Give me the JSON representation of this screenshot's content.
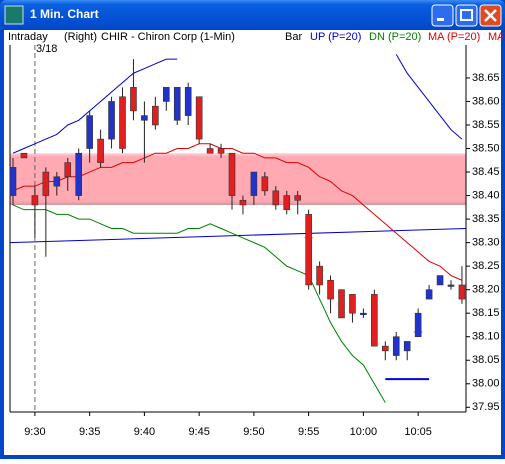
{
  "window": {
    "title": "1 Min. Chart"
  },
  "header": {
    "items": [
      "Intraday",
      "(Right)",
      "CHIR - Chiron Corp (1-Min)"
    ],
    "style": "Bar",
    "truncated": "MA"
  },
  "chart_data": {
    "type": "candlestick",
    "date_label": "3/18",
    "categories": [
      null,
      null,
      "9:30",
      null,
      null,
      null,
      null,
      "9:35",
      null,
      null,
      null,
      null,
      "9:40",
      null,
      null,
      null,
      null,
      "9:45",
      null,
      null,
      null,
      null,
      "9:50",
      null,
      null,
      null,
      null,
      "9:55",
      null,
      null,
      null,
      null,
      "10:00",
      null,
      null,
      null,
      null,
      "10:05",
      null,
      null,
      null,
      null
    ],
    "open": [
      38.4,
      38.49,
      38.4,
      38.45,
      38.42,
      38.47,
      38.4,
      38.5,
      38.52,
      38.52,
      38.61,
      38.63,
      38.56,
      38.59,
      38.6,
      38.56,
      38.57,
      38.61,
      38.5,
      38.5,
      38.49,
      38.39,
      38.4,
      38.44,
      38.41,
      38.4,
      38.4,
      38.36,
      38.25,
      38.22,
      38.2,
      38.19,
      38.15,
      38.19,
      38.08,
      38.06,
      38.07,
      38.1,
      38.18,
      38.21,
      38.21,
      38.21
    ],
    "high": [
      38.48,
      38.49,
      38.42,
      38.46,
      38.45,
      38.48,
      38.5,
      38.58,
      38.54,
      38.61,
      38.63,
      38.69,
      38.6,
      38.61,
      38.63,
      38.63,
      38.64,
      38.61,
      38.51,
      38.51,
      38.49,
      38.4,
      38.45,
      38.45,
      38.42,
      38.41,
      38.41,
      38.37,
      38.26,
      38.23,
      38.2,
      38.19,
      38.16,
      38.2,
      38.09,
      38.11,
      38.09,
      38.16,
      38.21,
      38.23,
      38.22,
      38.25
    ],
    "low": [
      38.38,
      38.48,
      38.31,
      38.27,
      38.4,
      38.41,
      38.39,
      38.47,
      38.46,
      38.5,
      38.49,
      38.56,
      38.47,
      38.54,
      38.58,
      38.55,
      38.55,
      38.51,
      38.49,
      38.48,
      38.37,
      38.36,
      38.38,
      38.4,
      38.37,
      38.36,
      38.36,
      38.2,
      38.19,
      38.15,
      38.14,
      38.13,
      38.14,
      38.08,
      38.05,
      38.05,
      38.05,
      38.1,
      38.18,
      38.21,
      38.2,
      38.17
    ],
    "close": [
      38.46,
      38.48,
      38.38,
      38.4,
      38.44,
      38.44,
      38.49,
      38.57,
      38.47,
      38.6,
      38.5,
      38.58,
      38.57,
      38.55,
      38.63,
      38.63,
      38.63,
      38.52,
      38.49,
      38.49,
      38.4,
      38.38,
      38.45,
      38.41,
      38.38,
      38.37,
      38.39,
      38.21,
      38.21,
      38.18,
      38.14,
      38.15,
      38.15,
      38.08,
      38.07,
      38.1,
      38.09,
      38.15,
      38.2,
      38.23,
      38.21,
      38.18
    ],
    "up_color": "#2233cc",
    "down_color": "#e02020",
    "series": [
      {
        "name": "UP (P=20)",
        "color": "#0000cc",
        "values": [
          38.49,
          38.5,
          38.51,
          38.52,
          38.53,
          38.55,
          38.56,
          38.58,
          38.6,
          38.62,
          38.64,
          38.66,
          38.67,
          38.68,
          38.69,
          38.69,
          null,
          null,
          null,
          null,
          null,
          null,
          null,
          null,
          null,
          null,
          null,
          null,
          null,
          null,
          null,
          null,
          null,
          null,
          null,
          38.7,
          38.66,
          38.63,
          38.6,
          38.57,
          38.54,
          38.52
        ]
      },
      {
        "name": "DN (P=20)",
        "color": "#008000",
        "values": [
          38.38,
          38.37,
          38.37,
          38.37,
          38.36,
          38.36,
          38.35,
          38.35,
          38.34,
          38.33,
          38.33,
          38.32,
          38.32,
          38.32,
          38.32,
          38.32,
          38.33,
          38.33,
          38.34,
          38.33,
          38.32,
          38.31,
          38.3,
          38.29,
          38.27,
          38.25,
          38.24,
          38.23,
          38.18,
          38.13,
          38.09,
          38.06,
          38.04,
          38.0,
          37.96,
          null,
          null,
          null,
          null,
          null,
          null,
          null
        ]
      },
      {
        "name": "MA (P=20)",
        "color": "#e00000",
        "values": [
          38.41,
          38.42,
          38.42,
          38.43,
          38.43,
          38.44,
          38.44,
          38.45,
          38.46,
          38.46,
          38.47,
          38.47,
          38.48,
          38.49,
          38.49,
          38.5,
          38.5,
          38.51,
          38.51,
          38.5,
          38.5,
          38.49,
          38.49,
          38.48,
          38.48,
          38.47,
          38.47,
          38.46,
          38.44,
          38.43,
          38.41,
          38.4,
          38.38,
          38.36,
          38.34,
          38.32,
          38.3,
          38.28,
          38.26,
          38.25,
          38.23,
          38.22
        ]
      }
    ],
    "zone": {
      "values": [
        38.38,
        38.49
      ],
      "color": "#ff9aa6"
    },
    "trendline": {
      "values": [
        38.3,
        38.33
      ],
      "color": "#0000cc"
    },
    "support": {
      "color": "#0000ee",
      "values": [
        null,
        null,
        null,
        null,
        null,
        null,
        null,
        null,
        null,
        null,
        null,
        null,
        null,
        null,
        null,
        null,
        null,
        null,
        null,
        null,
        null,
        null,
        null,
        null,
        null,
        null,
        null,
        null,
        null,
        null,
        null,
        null,
        null,
        null,
        38.01,
        38.01,
        38.01,
        38.01,
        38.01,
        null,
        null,
        null
      ]
    },
    "markers": [
      {
        "color": "#e02020",
        "values": [
          null,
          null,
          null,
          null,
          null,
          null,
          null,
          null,
          null,
          null,
          null,
          null,
          null,
          null,
          null,
          null,
          null,
          null,
          null,
          null,
          null,
          null,
          null,
          null,
          null,
          null,
          null,
          38.31,
          null,
          null,
          null,
          null,
          null,
          null,
          null,
          null,
          null,
          null,
          null,
          null,
          null,
          null
        ]
      },
      {
        "color": "#2233cc",
        "values": [
          null,
          null,
          null,
          null,
          null,
          null,
          null,
          null,
          null,
          null,
          null,
          null,
          null,
          null,
          null,
          null,
          null,
          null,
          null,
          null,
          null,
          null,
          null,
          null,
          null,
          null,
          null,
          null,
          null,
          null,
          null,
          null,
          null,
          null,
          null,
          null,
          null,
          38.11,
          null,
          null,
          null,
          null
        ]
      }
    ],
    "ylim": [
      37.94,
      38.72
    ],
    "yticks": [
      37.95,
      {
        "value": 38.0,
        "label": "38.00"
      },
      38.05,
      {
        "value": 38.1,
        "label": "38.10"
      },
      38.15,
      {
        "value": 38.2,
        "label": "38.20"
      },
      38.25,
      {
        "value": 38.3,
        "label": "38.30"
      },
      38.35,
      {
        "value": 38.4,
        "label": "38.40"
      },
      38.45,
      {
        "value": 38.5,
        "label": "38.50"
      },
      38.55,
      {
        "value": 38.6,
        "label": "38.60"
      },
      38.65
    ]
  }
}
